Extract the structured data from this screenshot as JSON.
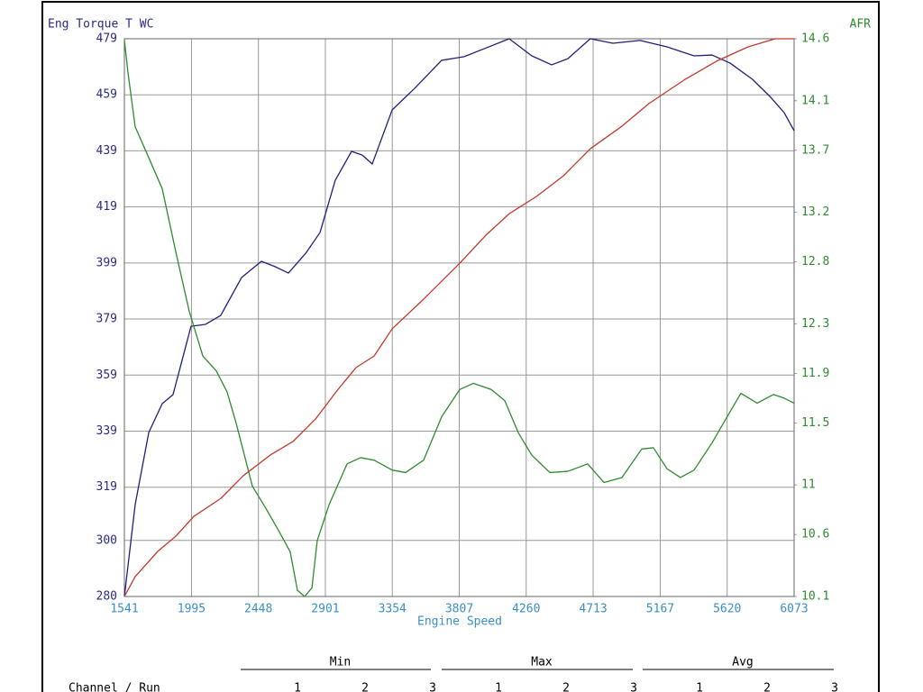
{
  "chart_data": {
    "type": "line",
    "y_label": "Eng Torque T WC",
    "y2_label": "AFR",
    "x_label": "Engine Speed",
    "xlim": [
      1541,
      6073
    ],
    "xticks": [
      1541,
      1995,
      2448,
      2901,
      3354,
      3807,
      4260,
      4713,
      5167,
      5620,
      6073
    ],
    "ylim": [
      280,
      479
    ],
    "yticks": [
      280,
      300,
      319,
      339,
      359,
      379,
      399,
      419,
      439,
      459,
      479
    ],
    "y2lim": [
      10.1,
      14.6
    ],
    "y2ticks": [
      10.1,
      10.6,
      11.0,
      11.5,
      11.9,
      12.3,
      12.8,
      13.2,
      13.7,
      14.1,
      14.6
    ],
    "grid": true,
    "series": [
      {
        "color": "#1f1f7a",
        "x": [
          1541,
          1614,
          1706,
          1797,
          1870,
          1992,
          2090,
          2193,
          2334,
          2468,
          2560,
          2651,
          2773,
          2865,
          2968,
          3078,
          3151,
          3218,
          3353,
          3505,
          3688,
          3840,
          3993,
          4145,
          4298,
          4432,
          4542,
          4694,
          4847,
          5030,
          5213,
          5396,
          5518,
          5640,
          5792,
          5915,
          6006,
          6073
        ],
        "values": [
          280,
          312.8,
          338.5,
          348.8,
          352,
          376.4,
          377.1,
          380.3,
          393.8,
          399.6,
          397.7,
          395.4,
          402.8,
          409.9,
          428.5,
          438.8,
          437.5,
          434.3,
          453.6,
          461.3,
          471.3,
          472.6,
          475.8,
          479,
          472.9,
          469.7,
          471.9,
          479,
          477.4,
          478.4,
          476.1,
          472.9,
          473.2,
          470.3,
          464.5,
          458.1,
          452.6,
          446.2
        ]
      },
      {
        "color": "#c0392b",
        "x": [
          1541,
          1614,
          1767,
          1889,
          2011,
          2194,
          2346,
          2529,
          2682,
          2834,
          2987,
          3109,
          3231,
          3353,
          3566,
          3810,
          3993,
          4146,
          4329,
          4512,
          4695,
          4908,
          5091,
          5335,
          5548,
          5762,
          5945,
          6073
        ],
        "values": [
          280,
          287.1,
          296.1,
          301.5,
          308.6,
          315,
          323.1,
          330.5,
          335.3,
          343.3,
          353.9,
          361.7,
          365.8,
          375.5,
          386.1,
          398.9,
          409.2,
          416.6,
          422.7,
          430.1,
          439.8,
          447.8,
          455.9,
          464.5,
          471,
          476.1,
          479,
          479
        ]
      },
      {
        "color": "#2e8b2e",
        "axis": "y2",
        "x": [
          1541,
          1565,
          1614,
          1706,
          1797,
          1889,
          1980,
          2072,
          2163,
          2236,
          2297,
          2407,
          2499,
          2590,
          2663,
          2712,
          2761,
          2810,
          2846,
          2926,
          3048,
          3139,
          3231,
          3353,
          3444,
          3566,
          3688,
          3810,
          3902,
          4023,
          4115,
          4207,
          4298,
          4420,
          4542,
          4676,
          4786,
          4908,
          5042,
          5121,
          5213,
          5304,
          5396,
          5518,
          5610,
          5713,
          5823,
          5933,
          6006,
          6073
        ],
        "values": [
          14.59,
          14.33,
          13.89,
          13.64,
          13.39,
          12.88,
          12.4,
          12.04,
          11.92,
          11.75,
          11.5,
          10.99,
          10.81,
          10.62,
          10.46,
          10.15,
          10.1,
          10.17,
          10.55,
          10.84,
          11.17,
          11.22,
          11.2,
          11.12,
          11.1,
          11.2,
          11.55,
          11.77,
          11.82,
          11.77,
          11.68,
          11.42,
          11.24,
          11.1,
          11.11,
          11.17,
          11.02,
          11.06,
          11.29,
          11.3,
          11.13,
          11.06,
          11.12,
          11.34,
          11.53,
          11.74,
          11.66,
          11.73,
          11.7,
          11.66
        ]
      }
    ]
  },
  "table": {
    "row_header": "Channel / Run",
    "groups": [
      {
        "label": "Min",
        "runs": [
          1,
          2,
          3
        ]
      },
      {
        "label": "Max",
        "runs": [
          1,
          2,
          3
        ]
      },
      {
        "label": "Avg",
        "runs": [
          1,
          2,
          3
        ]
      }
    ]
  }
}
